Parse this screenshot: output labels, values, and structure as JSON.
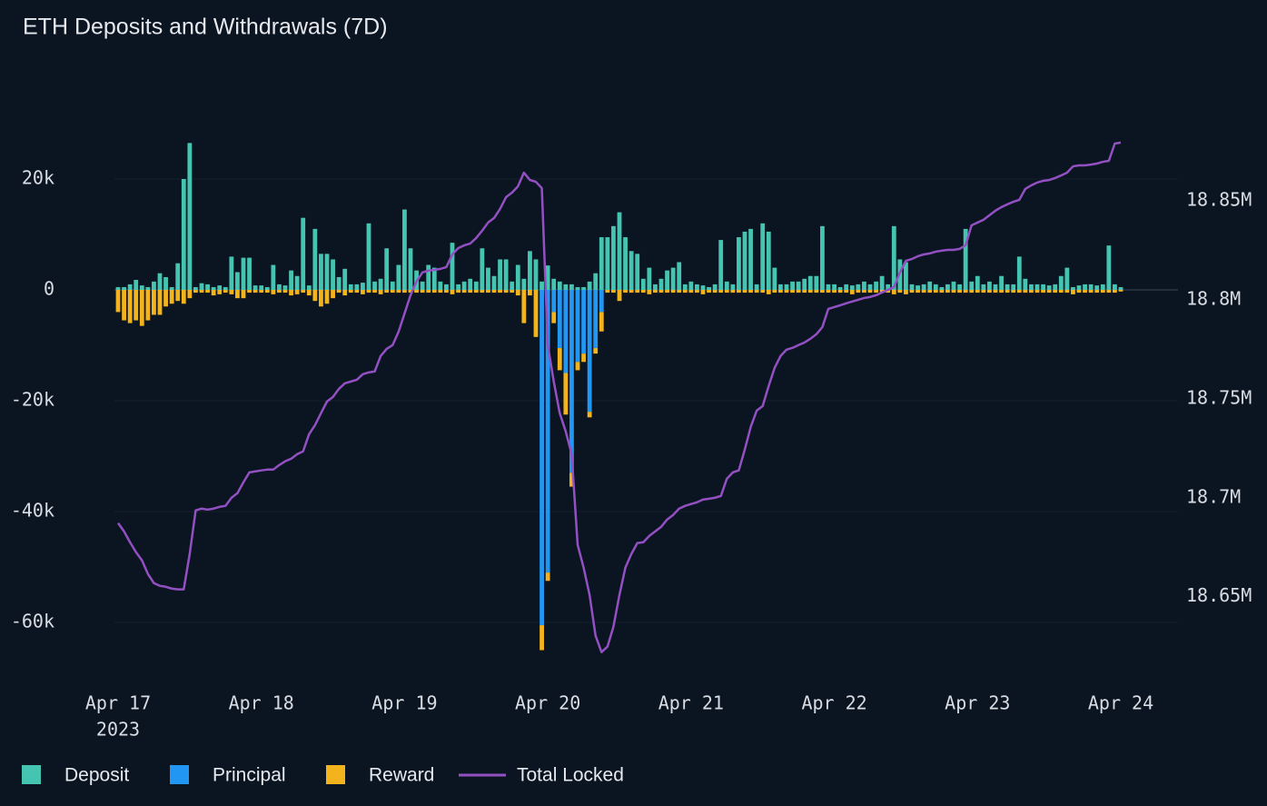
{
  "chart_data": {
    "type": "bar",
    "title": "ETH Deposits and Withdrawals (7D)",
    "categories": [
      "Apr 17",
      null,
      null,
      null,
      null,
      null,
      null,
      null,
      null,
      null,
      null,
      null,
      null,
      null,
      null,
      null,
      null,
      null,
      null,
      null,
      null,
      null,
      null,
      null,
      "Apr 18",
      null,
      null,
      null,
      null,
      null,
      null,
      null,
      null,
      null,
      null,
      null,
      null,
      null,
      null,
      null,
      null,
      null,
      null,
      null,
      null,
      null,
      null,
      null,
      "Apr 19",
      null,
      null,
      null,
      null,
      null,
      null,
      null,
      null,
      null,
      null,
      null,
      null,
      null,
      null,
      null,
      null,
      null,
      null,
      null,
      null,
      null,
      null,
      null,
      "Apr 20",
      null,
      null,
      null,
      null,
      null,
      null,
      null,
      null,
      null,
      null,
      null,
      null,
      null,
      null,
      null,
      null,
      null,
      null,
      null,
      null,
      null,
      null,
      null,
      "Apr 21",
      null,
      null,
      null,
      null,
      null,
      null,
      null,
      null,
      null,
      null,
      null,
      null,
      null,
      null,
      null,
      null,
      null,
      null,
      null,
      null,
      null,
      null,
      null,
      "Apr 22",
      null,
      null,
      null,
      null,
      null,
      null,
      null,
      null,
      null,
      null,
      null,
      null,
      null,
      null,
      null,
      null,
      null,
      null,
      null,
      null,
      null,
      null,
      null,
      "Apr 23",
      null,
      null,
      null,
      null,
      null,
      null,
      null,
      null,
      null,
      null,
      null,
      null,
      null,
      null,
      null,
      null,
      null,
      null,
      null,
      null,
      null,
      null,
      null,
      "Apr 24"
    ],
    "x_sublabel": "2023",
    "ylim": [
      -70000,
      30000
    ],
    "yticks": [
      {
        "value": 20000,
        "label": "20k"
      },
      0,
      {
        "value": -20000,
        "label": "-20k"
      },
      {
        "value": -40000,
        "label": "-40k"
      },
      {
        "value": -60000,
        "label": "-60k"
      }
    ],
    "y2lim": [
      18609000,
      18889000
    ],
    "y2ticks": [
      {
        "value": 18650000,
        "label": "18.65M"
      },
      {
        "value": 18700000,
        "label": "18.7M"
      },
      {
        "value": 18750000,
        "label": "18.75M"
      },
      {
        "value": 18800000,
        "label": "18.8M"
      },
      {
        "value": 18850000,
        "label": "18.85M"
      }
    ],
    "grid": true,
    "legend": "bottom",
    "series": [
      {
        "name": "Deposit",
        "color": "#46c4b2",
        "values": [
          500,
          500,
          1000,
          1800,
          800,
          500,
          1500,
          3000,
          2300,
          500,
          4800,
          20000,
          26500,
          500,
          1200,
          1000,
          500,
          800,
          500,
          6000,
          3200,
          5800,
          5800,
          800,
          800,
          500,
          4500,
          1000,
          800,
          3500,
          2500,
          13000,
          800,
          11000,
          6500,
          6500,
          5500,
          2300,
          3800,
          1000,
          1000,
          1300,
          12000,
          1500,
          2000,
          7500,
          1500,
          4500,
          14500,
          7500,
          3500,
          1500,
          4500,
          4000,
          1500,
          1000,
          8500,
          1000,
          1500,
          2000,
          1500,
          7500,
          4000,
          2500,
          5500,
          5500,
          1500,
          4500,
          2000,
          7000,
          5500,
          1500,
          4400,
          2000,
          1500,
          1000,
          1000,
          500,
          500,
          1500,
          3000,
          9500,
          9500,
          11500,
          14000,
          9500,
          7000,
          6500,
          2000,
          4000,
          1000,
          2000,
          3500,
          4000,
          5000,
          1000,
          1500,
          1000,
          800,
          500,
          1000,
          9000,
          1500,
          1000,
          9500,
          10500,
          11000,
          1000,
          12000,
          10500,
          4000,
          1000,
          1000,
          1500,
          1500,
          2000,
          2500,
          2500,
          11500,
          1000,
          1000,
          500,
          1000,
          800,
          1000,
          1500,
          1000,
          1500,
          2500,
          1000,
          11500,
          5500,
          5000,
          1000,
          800,
          1000,
          1500,
          1000,
          500,
          1000,
          1500,
          1000,
          11000,
          1500,
          2500,
          1000,
          1500,
          1000,
          2500,
          1000,
          1000,
          6000,
          2000,
          1000,
          1000,
          1000,
          800,
          1000,
          2500,
          4000,
          500,
          800,
          1000,
          1000,
          800,
          1000,
          8000,
          1000,
          500
        ]
      },
      {
        "name": "Principal",
        "color": "#2196f3",
        "values": [
          0,
          0,
          0,
          0,
          0,
          0,
          0,
          0,
          0,
          0,
          0,
          0,
          0,
          0,
          0,
          0,
          0,
          0,
          0,
          0,
          0,
          0,
          0,
          0,
          0,
          0,
          0,
          0,
          0,
          0,
          0,
          0,
          0,
          0,
          0,
          0,
          0,
          0,
          0,
          0,
          0,
          0,
          0,
          0,
          0,
          0,
          0,
          0,
          0,
          0,
          0,
          0,
          0,
          0,
          0,
          0,
          0,
          0,
          0,
          0,
          0,
          0,
          0,
          0,
          0,
          0,
          0,
          0,
          0,
          0,
          0,
          -60500,
          -51000,
          -4000,
          -10500,
          -15000,
          -33000,
          -13000,
          -11500,
          -22000,
          -10500,
          -4000,
          0,
          0,
          0,
          0,
          0,
          0,
          0,
          0,
          0,
          0,
          0,
          0,
          0,
          0,
          0,
          0,
          0,
          0,
          0,
          0,
          0,
          0,
          0,
          0,
          0,
          0,
          0,
          0,
          0,
          0,
          0,
          0,
          0,
          0,
          0,
          0,
          0,
          0,
          0,
          0,
          0,
          0,
          0,
          0,
          0,
          0,
          0,
          0,
          0,
          0,
          0,
          0,
          0,
          0,
          0,
          0,
          0,
          0,
          0,
          0,
          0,
          0,
          0,
          0,
          0,
          0,
          0,
          0,
          0,
          0,
          0,
          0,
          0,
          0,
          0,
          0,
          0,
          0,
          0,
          0,
          0,
          0,
          0,
          0,
          0,
          0,
          0
        ]
      },
      {
        "name": "Reward",
        "color": "#f2b31d",
        "values": [
          -4000,
          -5500,
          -6000,
          -5500,
          -6500,
          -5500,
          -4500,
          -4500,
          -3000,
          -2500,
          -2000,
          -2500,
          -1500,
          -500,
          -500,
          -500,
          -1000,
          -800,
          -500,
          -800,
          -1500,
          -1500,
          -500,
          -500,
          -500,
          -500,
          -800,
          -500,
          -500,
          -1000,
          -800,
          -500,
          -1000,
          -2000,
          -3000,
          -2500,
          -1500,
          -500,
          -1000,
          -500,
          -500,
          -800,
          -500,
          -500,
          -800,
          -500,
          -500,
          -500,
          -500,
          -500,
          -500,
          -500,
          -500,
          -500,
          -500,
          -500,
          -800,
          -500,
          -500,
          -500,
          -500,
          -500,
          -500,
          -500,
          -500,
          -500,
          -500,
          -1000,
          -6000,
          -1000,
          -8500,
          -4500,
          -1500,
          -2000,
          -4000,
          -7500,
          -2500,
          -1500,
          -1500,
          -1000,
          -1000,
          -3500,
          -500,
          -500,
          -2000,
          -500,
          -500,
          -500,
          -500,
          -800,
          -500,
          -500,
          -500,
          -500,
          -500,
          -500,
          -500,
          -500,
          -800,
          -500,
          -500,
          -500,
          -500,
          -500,
          -500,
          -500,
          -500,
          -500,
          -500,
          -800,
          -500,
          -500,
          -500,
          -500,
          -500,
          -500,
          -500,
          -500,
          -500,
          -500,
          -500,
          -500,
          -500,
          -800,
          -500,
          -500,
          -500,
          -500,
          -500,
          -500,
          -800,
          -500,
          -800,
          -500,
          -500,
          -500,
          -500,
          -500,
          -500,
          -500,
          -500,
          -500,
          -500,
          -500,
          -500,
          -500,
          -500,
          -500,
          -500,
          -500,
          -500,
          -500,
          -500,
          -500,
          -500,
          -500,
          -500,
          -500,
          -500,
          -500,
          -800,
          -500,
          -500,
          -500,
          -500,
          -500,
          -500,
          -500,
          -300
        ]
      },
      {
        "name": "Total Locked",
        "type": "line",
        "axis": "y2",
        "color": "#9350c2",
        "values": [
          18687200,
          18683000,
          18677500,
          18672500,
          18668400,
          18661500,
          18656900,
          18655500,
          18655000,
          18654100,
          18653700,
          18653700,
          18671600,
          18693600,
          18694500,
          18694000,
          18694500,
          18695400,
          18695900,
          18700000,
          18702300,
          18707800,
          18712800,
          18713300,
          18713800,
          18714200,
          18714200,
          18716500,
          18718400,
          18719700,
          18722000,
          18723400,
          18732100,
          18736700,
          18742700,
          18748600,
          18750900,
          18755000,
          18757800,
          18758700,
          18759600,
          18762400,
          18763300,
          18763800,
          18771600,
          18775200,
          18777100,
          18783900,
          18793100,
          18802300,
          18809200,
          18813800,
          18814700,
          18815100,
          18815600,
          18816500,
          18822900,
          18826100,
          18827500,
          18828400,
          18831200,
          18834900,
          18839000,
          18841300,
          18845900,
          18851800,
          18854100,
          18857300,
          18864200,
          18860500,
          18859600,
          18856400,
          18777100,
          18758700,
          18742700,
          18733500,
          18722000,
          18676200,
          18664700,
          18650900,
          18630300,
          18622000,
          18624800,
          18634900,
          18650900,
          18664700,
          18671600,
          18677100,
          18677500,
          18680700,
          18683000,
          18685300,
          18689000,
          18691300,
          18694500,
          18695900,
          18696800,
          18697700,
          18699100,
          18699500,
          18700000,
          18700900,
          18709600,
          18712800,
          18713800,
          18724300,
          18735800,
          18744000,
          18746300,
          18756400,
          18765600,
          18771600,
          18774800,
          18775700,
          18777100,
          18778400,
          18780300,
          18782600,
          18786200,
          18795400,
          18796300,
          18797200,
          18798200,
          18799100,
          18800000,
          18800900,
          18801400,
          18802300,
          18803700,
          18805000,
          18806400,
          18813800,
          18819700,
          18820600,
          18822000,
          18822900,
          18823400,
          18824300,
          18824800,
          18825200,
          18825200,
          18825700,
          18827500,
          18837600,
          18839000,
          18840400,
          18842700,
          18845000,
          18846800,
          18848200,
          18849500,
          18850500,
          18856000,
          18857800,
          18859200,
          18860100,
          18860500,
          18861500,
          18862800,
          18864200,
          18867400,
          18867900,
          18867900,
          18868300,
          18868800,
          18869700,
          18870200,
          18878900,
          18879400
        ]
      }
    ]
  }
}
